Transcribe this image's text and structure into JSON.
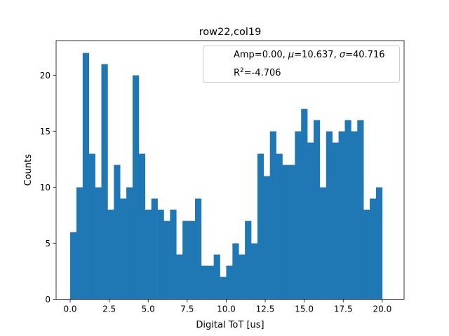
{
  "chart_data": {
    "type": "bar",
    "title": "row22,col19",
    "xlabel": "Digital ToT [us]",
    "ylabel": "Counts",
    "xlim": [
      -0.9,
      21.4
    ],
    "ylim": [
      0,
      23.1
    ],
    "bin_start": 0.0,
    "bin_width": 0.4,
    "values": [
      6,
      10,
      22,
      13,
      10,
      21,
      8,
      12,
      9,
      10,
      20,
      13,
      8,
      9,
      8,
      7,
      8,
      4,
      7,
      7,
      9,
      3,
      3,
      4,
      2,
      3,
      5,
      4,
      7,
      5,
      13,
      11,
      15,
      13,
      12,
      12,
      15,
      17,
      14,
      16,
      10,
      15,
      14,
      15,
      16,
      15,
      16,
      8,
      9,
      10
    ],
    "xticks": [
      "0.0",
      "2.5",
      "5.0",
      "7.5",
      "10.0",
      "12.5",
      "15.0",
      "17.5",
      "20.0"
    ],
    "xtick_values": [
      0,
      2.5,
      5,
      7.5,
      10,
      12.5,
      15,
      17.5,
      20
    ],
    "yticks": [
      "0",
      "5",
      "10",
      "15",
      "20"
    ],
    "ytick_values": [
      0,
      5,
      10,
      15,
      20
    ],
    "bar_color": "#1f77b4",
    "grid": false,
    "legend_position": "top-right",
    "legend": {
      "line1_prefix": "Amp=0.00, ",
      "mu_symbol": "μ",
      "line1_mu": "=10.637, ",
      "sigma_symbol": "σ",
      "line1_sigma": "=40.716",
      "r_label": "R",
      "r_sup": "2",
      "r_value": "=-4.706"
    }
  }
}
